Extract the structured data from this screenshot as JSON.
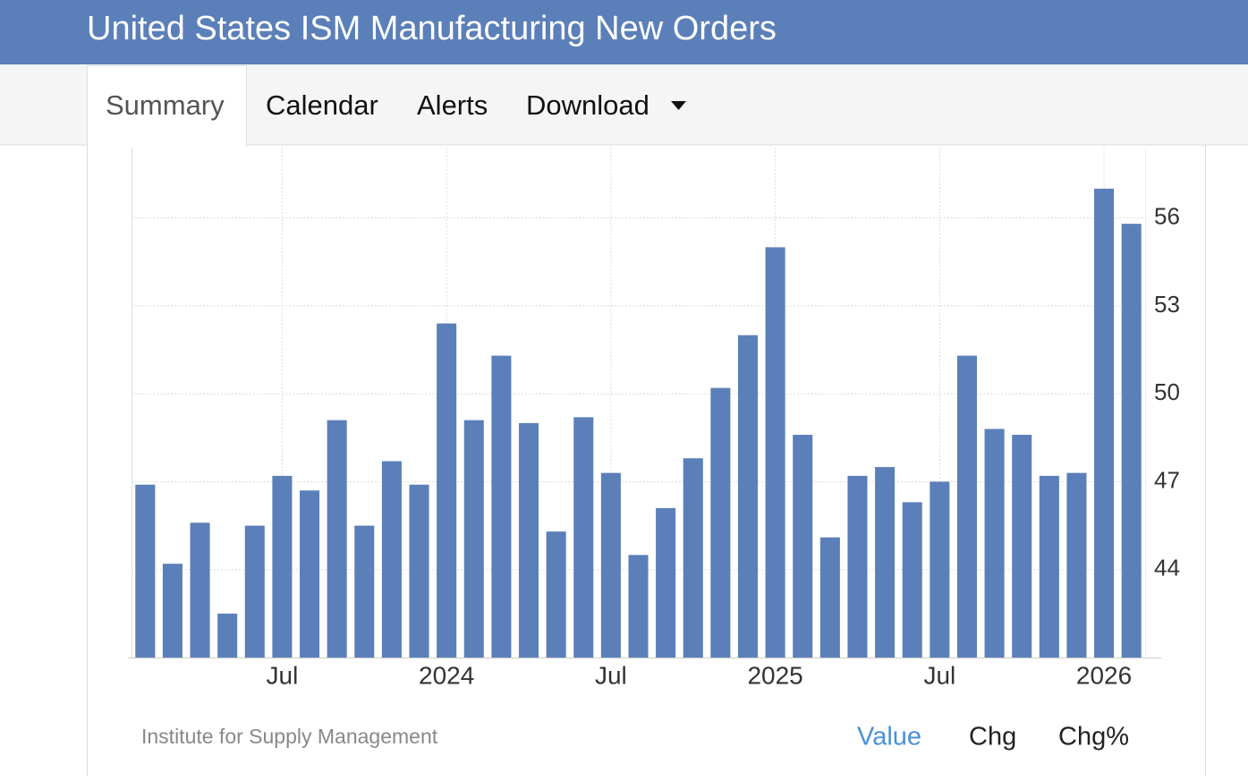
{
  "header": {
    "title": "United States ISM Manufacturing New Orders"
  },
  "tabs": [
    "Summary",
    "Calendar",
    "Alerts",
    "Download"
  ],
  "chart_data": {
    "type": "bar",
    "categories": [
      null,
      null,
      null,
      null,
      null,
      "Jul",
      null,
      null,
      null,
      null,
      null,
      "2024",
      null,
      null,
      null,
      null,
      null,
      "Jul",
      null,
      null,
      null,
      null,
      null,
      "2025",
      null,
      null,
      null,
      null,
      null,
      "Jul",
      null,
      null,
      null,
      null,
      null,
      "2026",
      null
    ],
    "values": [
      46.9,
      44.2,
      45.6,
      42.5,
      45.5,
      47.2,
      46.7,
      49.1,
      45.5,
      47.7,
      46.9,
      52.4,
      49.1,
      51.3,
      49.0,
      45.3,
      49.2,
      47.3,
      44.5,
      46.1,
      47.8,
      50.2,
      52.0,
      55.0,
      48.6,
      45.1,
      47.2,
      47.5,
      46.3,
      47.0,
      51.3,
      48.8,
      48.6,
      47.2,
      47.3,
      57.0,
      55.8
    ],
    "color": "#5b7fb9",
    "ylim": [
      41,
      58.4
    ],
    "yticks": [
      44,
      47,
      50,
      53,
      56
    ],
    "grid": true
  },
  "footer": {
    "source": "Institute for Supply Management",
    "buttons": [
      "Value",
      "Chg",
      "Chg%"
    ]
  }
}
